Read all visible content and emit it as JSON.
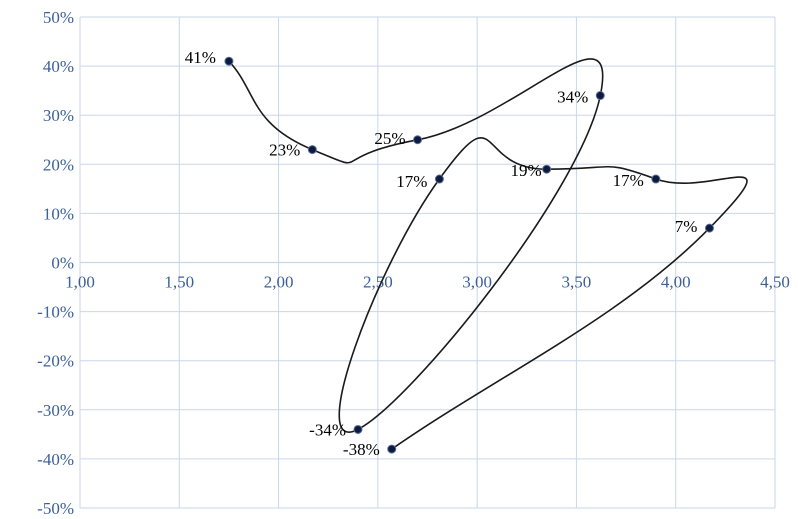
{
  "chart_data": {
    "type": "scatter",
    "style": "smooth-line-with-markers",
    "x": [
      1.75,
      2.17,
      2.7,
      3.62,
      2.4,
      2.81,
      3.35,
      3.9,
      4.17,
      2.57
    ],
    "y": [
      41,
      23,
      25,
      34,
      -34,
      17,
      19,
      17,
      7,
      -38
    ],
    "point_labels": [
      "41%",
      "23%",
      "25%",
      "34%",
      "-34%",
      "17%",
      "19%",
      "17%",
      "7%",
      "-38%"
    ],
    "xlim": [
      1.0,
      4.5
    ],
    "ylim": [
      -50,
      50
    ],
    "x_ticks": [
      "1,00",
      "1,50",
      "2,00",
      "2,50",
      "3,00",
      "3,50",
      "4,00",
      "4,50"
    ],
    "y_ticks": [
      "50%",
      "40%",
      "30%",
      "20%",
      "10%",
      "0%",
      "-10%",
      "-20%",
      "-30%",
      "-40%",
      "-50%"
    ],
    "grid": true,
    "title": "",
    "xlabel": "",
    "ylabel": "",
    "colors": {
      "tick_text": "#3b5f9a",
      "grid": "#c9d6ea",
      "line": "#1a1a1a",
      "marker": "#0d1b3e"
    }
  }
}
